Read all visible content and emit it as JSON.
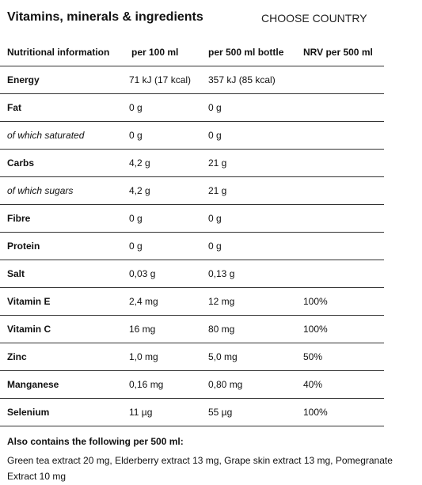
{
  "header": {
    "title": "Vitamins, minerals & ingredients",
    "country_link": "CHOOSE COUNTRY"
  },
  "table": {
    "headers": [
      "Nutritional information",
      "per 100 ml",
      "per 500 ml bottle",
      "NRV per 500 ml"
    ],
    "rows": [
      {
        "name": "Energy",
        "style": "bold",
        "per100": "71 kJ (17 kcal)",
        "per500": "357 kJ (85 kcal)",
        "nrv": ""
      },
      {
        "name": "Fat",
        "style": "bold",
        "per100": "0 g",
        "per500": "0 g",
        "nrv": ""
      },
      {
        "name": "of which saturated",
        "style": "italic",
        "per100": "0 g",
        "per500": "0 g",
        "nrv": ""
      },
      {
        "name": "Carbs",
        "style": "bold",
        "per100": "4,2 g",
        "per500": "21 g",
        "nrv": ""
      },
      {
        "name": "of which sugars",
        "style": "italic",
        "per100": "4,2 g",
        "per500": "21 g",
        "nrv": ""
      },
      {
        "name": "Fibre",
        "style": "bold",
        "per100": "0 g",
        "per500": "0 g",
        "nrv": ""
      },
      {
        "name": "Protein",
        "style": "bold",
        "per100": "0 g",
        "per500": "0 g",
        "nrv": ""
      },
      {
        "name": "Salt",
        "style": "bold",
        "per100": "0,03 g",
        "per500": "0,13 g",
        "nrv": ""
      },
      {
        "name": "Vitamin E",
        "style": "bold",
        "per100": "2,4 mg",
        "per500": "12 mg",
        "nrv": "100%"
      },
      {
        "name": "Vitamin C",
        "style": "bold",
        "per100": "16 mg",
        "per500": "80 mg",
        "nrv": "100%"
      },
      {
        "name": "Zinc",
        "style": "bold",
        "per100": "1,0 mg",
        "per500": "5,0 mg",
        "nrv": "50%"
      },
      {
        "name": "Manganese",
        "style": "bold",
        "per100": "0,16 mg",
        "per500": "0,80 mg",
        "nrv": "40%"
      },
      {
        "name": "Selenium",
        "style": "bold",
        "per100": "11 µg",
        "per500": "55 µg",
        "nrv": "100%"
      }
    ]
  },
  "also": {
    "title": "Also contains the following per 500 ml:",
    "text": "Green tea extract 20 mg, Elderberry extract 13 mg, Grape skin extract 13 mg, Pomegranate Extract 10 mg"
  }
}
